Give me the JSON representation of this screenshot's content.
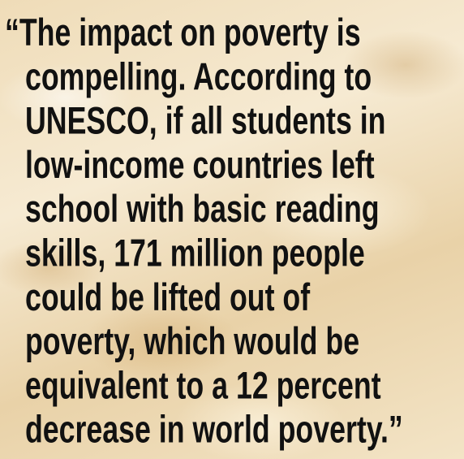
{
  "quote": {
    "lines": [
      "“The impact on poverty is",
      "compelling. According to",
      "UNESCO, if all students in",
      "low-income countries left",
      "school with basic reading",
      "skills, 171 million people",
      "could be lifted out of",
      "poverty, which would be",
      "equivalent to a 12 percent",
      "decrease in world poverty.”"
    ]
  }
}
